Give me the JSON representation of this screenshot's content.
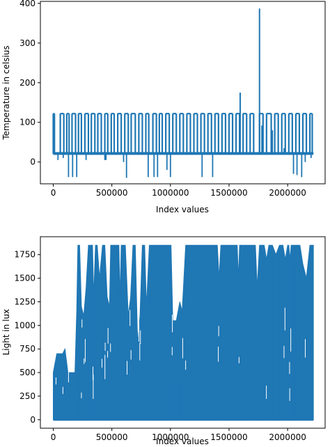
{
  "colors": {
    "series": "#1f77b4",
    "axis": "#000000",
    "background": "#ffffff"
  },
  "chart_data": [
    {
      "type": "line",
      "title": "",
      "xlabel": "Index values",
      "ylabel": "Temperature in celsius",
      "xlim": [
        -110000,
        2320000
      ],
      "ylim": [
        -55,
        405
      ],
      "xticks": [
        0,
        500000,
        1000000,
        1500000,
        2000000
      ],
      "xtick_labels": [
        "0",
        "500000",
        "1000000",
        "1500000",
        "2000000"
      ],
      "yticks": [
        0,
        100,
        200,
        300,
        400
      ],
      "ytick_labels": [
        "0",
        "100",
        "200",
        "300",
        "400"
      ],
      "grid": false,
      "series": [
        {
          "x_start": 0,
          "x_end": 2220000,
          "typical_range": [
            18,
            25
          ],
          "upper_spike_value": 122,
          "upper_spikes_x": [
            0,
            10000,
            60000,
            90000,
            115000,
            135000,
            160000,
            190000,
            215000,
            240000,
            270000,
            300000,
            325000,
            355000,
            380000,
            410000,
            440000,
            465000,
            495000,
            520000,
            550000,
            580000,
            610000,
            640000,
            665000,
            700000,
            730000,
            760000,
            790000,
            815000,
            850000,
            880000,
            905000,
            930000,
            960000,
            990000,
            1020000,
            1050000,
            1080000,
            1110000,
            1140000,
            1170000,
            1200000,
            1230000,
            1260000,
            1290000,
            1320000,
            1350000,
            1380000,
            1410000,
            1440000,
            1470000,
            1500000,
            1530000,
            1560000,
            1590000,
            1620000,
            1650000,
            1680000,
            1710000,
            1760000,
            1790000,
            1820000,
            1860000,
            1890000,
            1920000,
            1950000,
            1980000,
            2010000,
            2040000,
            2070000,
            2100000,
            2130000,
            2160000,
            2190000,
            2210000
          ],
          "lower_spikes": [
            [
              40000,
              5
            ],
            [
              85000,
              10
            ],
            [
              130000,
              -38
            ],
            [
              165000,
              -38
            ],
            [
              200000,
              -38
            ],
            [
              280000,
              5
            ],
            [
              440000,
              5
            ],
            [
              450000,
              5
            ],
            [
              600000,
              0
            ],
            [
              625000,
              -40
            ],
            [
              810000,
              -38
            ],
            [
              860000,
              -38
            ],
            [
              890000,
              -38
            ],
            [
              970000,
              -20
            ],
            [
              1000000,
              -38
            ],
            [
              1270000,
              -38
            ],
            [
              1360000,
              -38
            ],
            [
              2050000,
              -30
            ],
            [
              2080000,
              -33
            ],
            [
              2120000,
              -38
            ],
            [
              2150000,
              0
            ],
            [
              2200000,
              10
            ]
          ],
          "high_spikes": [
            [
              1595000,
              175
            ],
            [
              1760000,
              387
            ]
          ],
          "mid_spikes": [
            [
              1780000,
              92
            ],
            [
              1870000,
              80
            ],
            [
              1970000,
              35
            ],
            [
              2210000,
              30
            ]
          ]
        }
      ]
    },
    {
      "type": "line",
      "title": "",
      "xlabel": "Index values",
      "ylabel": "Light in lux",
      "xlim": [
        -110000,
        2320000
      ],
      "ylim": [
        -90,
        1940
      ],
      "xticks": [
        0,
        500000,
        1000000,
        1500000,
        2000000
      ],
      "xtick_labels": [
        "0",
        "500000",
        "1000000",
        "1500000",
        "2000000"
      ],
      "yticks": [
        0,
        250,
        500,
        750,
        1000,
        1250,
        1500,
        1750
      ],
      "ytick_labels": [
        "0",
        "250",
        "500",
        "750",
        "1000",
        "1250",
        "1500",
        "1750"
      ],
      "grid": false,
      "series": [
        {
          "x_start": 0,
          "x_end": 2220000,
          "saturation_value": 1850,
          "saturated_blocks": [
            [
              210000,
              225000
            ],
            [
              300000,
              335000
            ],
            [
              360000,
              375000
            ],
            [
              420000,
              440000
            ],
            [
              490000,
              560000
            ],
            [
              580000,
              615000
            ],
            [
              680000,
              700000
            ],
            [
              760000,
              780000
            ],
            [
              820000,
              1005000
            ],
            [
              1130000,
              1400000
            ],
            [
              1430000,
              1570000
            ],
            [
              1590000,
              1725000
            ],
            [
              1760000,
              1800000
            ],
            [
              1840000,
              1870000
            ],
            [
              1930000,
              1960000
            ],
            [
              2000000,
              2010000
            ],
            [
              2030000,
              2060000
            ],
            [
              2070000,
              2105000
            ],
            [
              2190000,
              2220000
            ]
          ],
          "envelope": [
            [
              0,
              500
            ],
            [
              15000,
              600
            ],
            [
              30000,
              700
            ],
            [
              55000,
              700
            ],
            [
              80000,
              700
            ],
            [
              100000,
              750
            ],
            [
              110000,
              650
            ],
            [
              125000,
              500
            ],
            [
              150000,
              500
            ],
            [
              185000,
              500
            ],
            [
              200000,
              1150
            ],
            [
              210000,
              1850
            ],
            [
              225000,
              1850
            ],
            [
              240000,
              1200
            ],
            [
              260000,
              1100
            ],
            [
              280000,
              1400
            ],
            [
              300000,
              1850
            ],
            [
              335000,
              1850
            ],
            [
              345000,
              1300
            ],
            [
              360000,
              1850
            ],
            [
              375000,
              1850
            ],
            [
              395000,
              1500
            ],
            [
              420000,
              1850
            ],
            [
              440000,
              1850
            ],
            [
              460000,
              1300
            ],
            [
              480000,
              1200
            ],
            [
              490000,
              1850
            ],
            [
              560000,
              1850
            ],
            [
              570000,
              1300
            ],
            [
              580000,
              1850
            ],
            [
              615000,
              1850
            ],
            [
              640000,
              1100
            ],
            [
              660000,
              1300
            ],
            [
              680000,
              1850
            ],
            [
              700000,
              1850
            ],
            [
              720000,
              800
            ],
            [
              740000,
              1100
            ],
            [
              760000,
              1850
            ],
            [
              780000,
              1850
            ],
            [
              795000,
              1200
            ],
            [
              820000,
              1850
            ],
            [
              1005000,
              1850
            ],
            [
              1020000,
              1050
            ],
            [
              1050000,
              1050
            ],
            [
              1080000,
              1250
            ],
            [
              1100000,
              1150
            ],
            [
              1130000,
              1850
            ],
            [
              1400000,
              1850
            ],
            [
              1415000,
              1500
            ],
            [
              1430000,
              1850
            ],
            [
              1570000,
              1850
            ],
            [
              1580000,
              1500
            ],
            [
              1590000,
              1850
            ],
            [
              1725000,
              1850
            ],
            [
              1740000,
              1400
            ],
            [
              1760000,
              1850
            ],
            [
              1800000,
              1850
            ],
            [
              1820000,
              1700
            ],
            [
              1840000,
              1850
            ],
            [
              1870000,
              1850
            ],
            [
              1900000,
              1750
            ],
            [
              1930000,
              1850
            ],
            [
              1960000,
              1850
            ],
            [
              1980000,
              1700
            ],
            [
              2000000,
              1850
            ],
            [
              2010000,
              1850
            ],
            [
              2020000,
              1700
            ],
            [
              2030000,
              1850
            ],
            [
              2060000,
              1850
            ],
            [
              2070000,
              1850
            ],
            [
              2105000,
              1850
            ],
            [
              2130000,
              1650
            ],
            [
              2160000,
              1500
            ],
            [
              2190000,
              1850
            ],
            [
              2220000,
              1850
            ]
          ],
          "floor_dips": [
            [
              1000000,
              380
            ],
            [
              1050000,
              400
            ],
            [
              1080000,
              420
            ]
          ]
        }
      ]
    }
  ]
}
